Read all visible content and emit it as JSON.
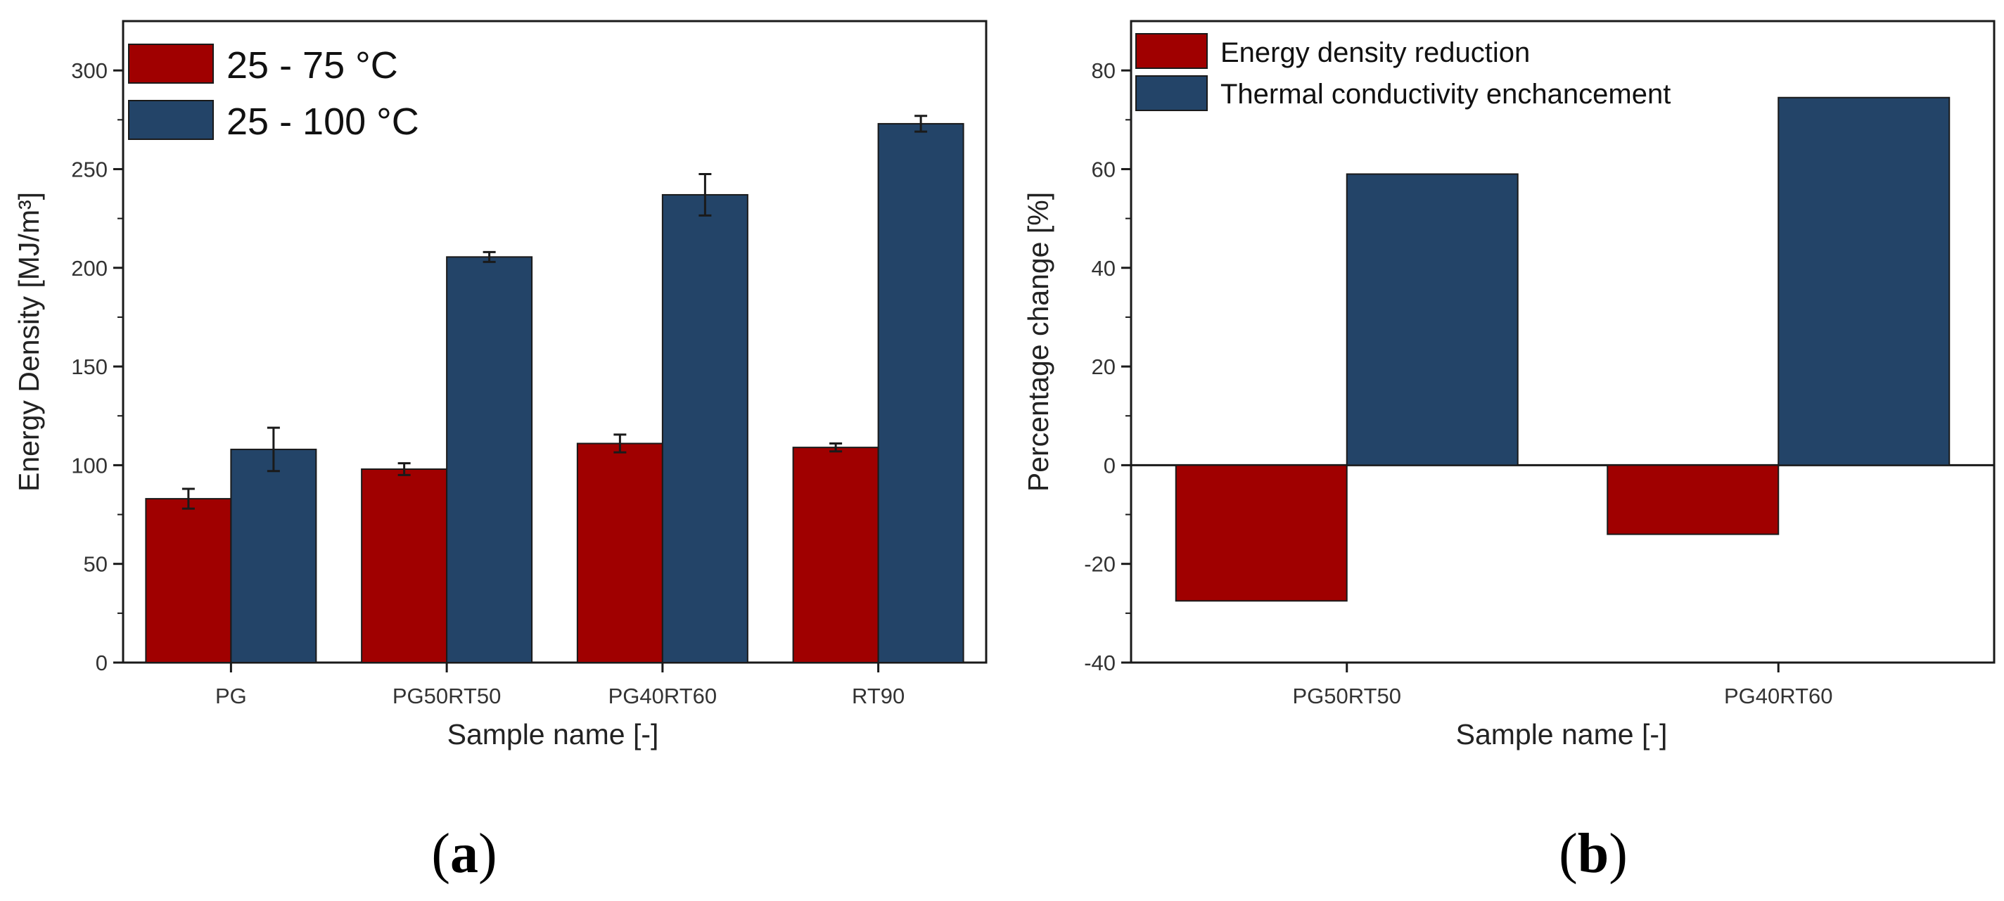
{
  "colors": {
    "red": "#a00000",
    "blue": "#234468",
    "axis": "#1a1a1a"
  },
  "panel_labels": {
    "a": "a",
    "b": "b"
  },
  "chart_data": [
    {
      "id": "a",
      "type": "bar",
      "categories": [
        "PG",
        "PG50RT50",
        "PG40RT60",
        "RT90"
      ],
      "series": [
        {
          "name": "25 - 75 °C",
          "color": "#a00000",
          "values": [
            83,
            98,
            111,
            109
          ],
          "errors": [
            5,
            3,
            4.5,
            2
          ]
        },
        {
          "name": "25 - 100 °C",
          "color": "#234468",
          "values": [
            108,
            205.5,
            237,
            273
          ],
          "errors": [
            11,
            2.5,
            10.5,
            4
          ]
        }
      ],
      "xlabel": "Sample name [-]",
      "ylabel": "Energy Density [MJ/m³]",
      "ylim": [
        0,
        325
      ],
      "yticks": [
        0,
        50,
        100,
        150,
        200,
        250,
        300
      ],
      "legend": "top-left",
      "grid": false
    },
    {
      "id": "b",
      "type": "bar",
      "categories": [
        "PG50RT50",
        "PG40RT60"
      ],
      "series": [
        {
          "name": "Energy density reduction",
          "color": "#a00000",
          "values": [
            -27.5,
            -14
          ]
        },
        {
          "name": "Thermal conductivity enchancement",
          "color": "#234468",
          "values": [
            59,
            74.5
          ]
        }
      ],
      "xlabel": "Sample name [-]",
      "ylabel": "Percentage change [%]",
      "ylim": [
        -40,
        90
      ],
      "yticks": [
        -40,
        -20,
        0,
        20,
        40,
        60,
        80
      ],
      "legend": "top-left",
      "grid": false
    }
  ]
}
